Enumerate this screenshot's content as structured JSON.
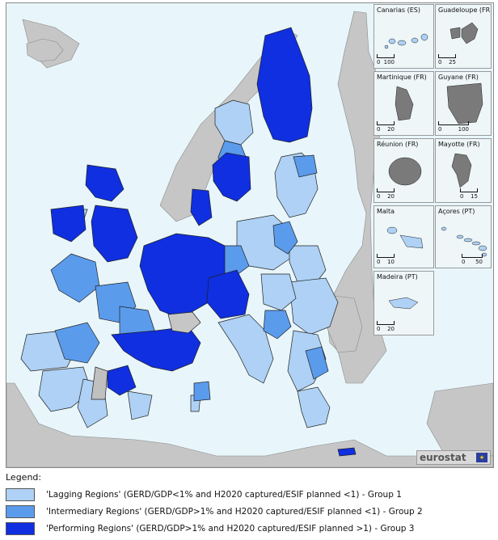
{
  "colors": {
    "sea": "#e8f6fb",
    "non_eu": "#c6c6c6",
    "group1": "#aed1f5",
    "group2": "#5b9bec",
    "group3": "#0f2fe0",
    "no_data": "#c0c0c0",
    "border": "#202020"
  },
  "insets": [
    {
      "title": "Canarias (ES)",
      "scale_start": "0",
      "scale_end": "100"
    },
    {
      "title": "Guadeloupe (FR)",
      "scale_start": "0",
      "scale_end": "25"
    },
    {
      "title": "Martinique (FR)",
      "scale_start": "0",
      "scale_end": "20"
    },
    {
      "title": "Guyane (FR)",
      "scale_start": "0",
      "scale_end": "100"
    },
    {
      "title": "Réunion (FR)",
      "scale_start": "0",
      "scale_end": "20"
    },
    {
      "title": "Mayotte (FR)",
      "scale_start": "0",
      "scale_end": "15"
    },
    {
      "title": "Malta",
      "scale_start": "0",
      "scale_end": "10"
    },
    {
      "title": "Açores (PT)",
      "scale_start": "0",
      "scale_end": "50"
    },
    {
      "title": "Madeira (PT)",
      "scale_start": "0",
      "scale_end": "20"
    }
  ],
  "logo": {
    "text": "eurostat",
    "flag_icon": "eu-flag-icon"
  },
  "legend": {
    "title": "Legend:",
    "items": [
      {
        "label": "'Lagging Regions' (GERD/GDP<1% and H2020 captured/ESIF planned <1) - Group 1",
        "color": "#aed1f5"
      },
      {
        "label": "'Intermediary Regions' (GERD/GDP>1% and H2020 captured/ESIF planned <1) - Group 2",
        "color": "#5b9bec"
      },
      {
        "label": "'Performing Regions' (GERD/GDP>1% and H2020 captured/ESIF planned >1) - Group 3",
        "color": "#0f2fe0"
      }
    ]
  }
}
